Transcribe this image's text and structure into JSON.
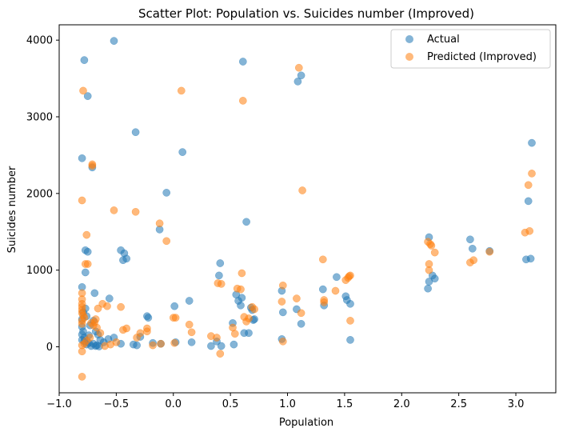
{
  "chart_data": {
    "type": "scatter",
    "title": "Scatter Plot: Population vs. Suicides number (Improved)",
    "xlabel": "Population",
    "ylabel": "Suicides number",
    "xlim": [
      -1.0,
      3.35
    ],
    "ylim": [
      -600,
      4200
    ],
    "xticks": [
      -1.0,
      -0.5,
      0.0,
      0.5,
      1.0,
      1.5,
      2.0,
      2.5,
      3.0
    ],
    "xtick_labels": [
      "−1.0",
      "−0.5",
      "0.0",
      "0.5",
      "1.0",
      "1.5",
      "2.0",
      "2.5",
      "3.0"
    ],
    "yticks": [
      0,
      1000,
      2000,
      3000,
      4000
    ],
    "ytick_labels": [
      "0",
      "1000",
      "2000",
      "3000",
      "4000"
    ],
    "grid": false,
    "legend_position": "top-right",
    "series": [
      {
        "name": "Actual",
        "color": "#1f77b4",
        "points": [
          [
            -0.52,
            3990
          ],
          [
            -0.78,
            3740
          ],
          [
            -0.75,
            3270
          ],
          [
            -0.33,
            2800
          ],
          [
            0.08,
            2540
          ],
          [
            -0.8,
            2460
          ],
          [
            -0.71,
            2340
          ],
          [
            -0.06,
            2010
          ],
          [
            0.61,
            3720
          ],
          [
            1.09,
            3460
          ],
          [
            1.12,
            3540
          ],
          [
            0.64,
            1630
          ],
          [
            -0.12,
            1530
          ],
          [
            -0.46,
            1260
          ],
          [
            -0.43,
            1220
          ],
          [
            -0.77,
            1260
          ],
          [
            -0.75,
            1240
          ],
          [
            -0.44,
            1130
          ],
          [
            -0.41,
            1150
          ],
          [
            -0.77,
            970
          ],
          [
            -0.8,
            780
          ],
          [
            -0.69,
            700
          ],
          [
            -0.56,
            630
          ],
          [
            0.41,
            1090
          ],
          [
            0.4,
            930
          ],
          [
            0.55,
            680
          ],
          [
            0.57,
            600
          ],
          [
            0.59,
            540
          ],
          [
            0.6,
            640
          ],
          [
            0.68,
            510
          ],
          [
            0.69,
            480
          ],
          [
            0.14,
            600
          ],
          [
            0.01,
            530
          ],
          [
            -0.23,
            400
          ],
          [
            -0.22,
            380
          ],
          [
            0.95,
            730
          ],
          [
            0.96,
            450
          ],
          [
            1.08,
            490
          ],
          [
            1.12,
            300
          ],
          [
            1.31,
            750
          ],
          [
            1.32,
            540
          ],
          [
            1.43,
            910
          ],
          [
            1.51,
            660
          ],
          [
            1.52,
            610
          ],
          [
            1.55,
            560
          ],
          [
            1.55,
            90
          ],
          [
            0.95,
            100
          ],
          [
            0.7,
            350
          ],
          [
            0.71,
            360
          ],
          [
            0.52,
            310
          ],
          [
            0.62,
            180
          ],
          [
            0.66,
            180
          ],
          [
            0.38,
            70
          ],
          [
            0.42,
            10
          ],
          [
            0.53,
            30
          ],
          [
            0.33,
            10
          ],
          [
            0.16,
            60
          ],
          [
            0.02,
            60
          ],
          [
            -0.11,
            40
          ],
          [
            -0.18,
            50
          ],
          [
            -0.29,
            130
          ],
          [
            -0.32,
            20
          ],
          [
            -0.35,
            30
          ],
          [
            -0.46,
            40
          ],
          [
            -0.52,
            120
          ],
          [
            -0.57,
            100
          ],
          [
            -0.61,
            60
          ],
          [
            -0.64,
            90
          ],
          [
            -0.66,
            160
          ],
          [
            -0.68,
            200
          ],
          [
            -0.7,
            40
          ],
          [
            -0.72,
            10
          ],
          [
            -0.74,
            50
          ],
          [
            -0.76,
            30
          ],
          [
            -0.78,
            120
          ],
          [
            -0.79,
            200
          ],
          [
            -0.8,
            260
          ],
          [
            -0.8,
            360
          ],
          [
            -0.79,
            450
          ],
          [
            -0.77,
            500
          ],
          [
            -0.73,
            280
          ],
          [
            -0.7,
            340
          ],
          [
            -0.68,
            10
          ],
          [
            -0.67,
            20
          ],
          [
            -0.65,
            5
          ],
          [
            -0.8,
            90
          ],
          [
            -0.8,
            160
          ],
          [
            -0.78,
            70
          ],
          [
            -0.76,
            400
          ],
          [
            -0.74,
            150
          ],
          [
            2.24,
            1430
          ],
          [
            2.23,
            760
          ],
          [
            2.24,
            850
          ],
          [
            2.27,
            930
          ],
          [
            2.29,
            890
          ],
          [
            2.6,
            1400
          ],
          [
            2.62,
            1280
          ],
          [
            2.77,
            1250
          ],
          [
            3.09,
            1140
          ],
          [
            3.11,
            1900
          ],
          [
            3.13,
            1150
          ],
          [
            3.14,
            2660
          ]
        ]
      },
      {
        "name": "Predicted (Improved)",
        "color": "#ff7f0e",
        "points": [
          [
            -0.79,
            3340
          ],
          [
            -0.71,
            2380
          ],
          [
            -0.71,
            2360
          ],
          [
            -0.8,
            1910
          ],
          [
            -0.52,
            1780
          ],
          [
            -0.33,
            1760
          ],
          [
            -0.12,
            1610
          ],
          [
            -0.06,
            1380
          ],
          [
            0.07,
            3340
          ],
          [
            0.61,
            3210
          ],
          [
            1.1,
            3640
          ],
          [
            1.13,
            2040
          ],
          [
            -0.76,
            1460
          ],
          [
            -0.77,
            1080
          ],
          [
            -0.75,
            1080
          ],
          [
            -0.8,
            700
          ],
          [
            -0.8,
            620
          ],
          [
            -0.8,
            560
          ],
          [
            -0.8,
            520
          ],
          [
            -0.8,
            480
          ],
          [
            -0.8,
            440
          ],
          [
            -0.79,
            410
          ],
          [
            -0.78,
            380
          ],
          [
            -0.8,
            340
          ],
          [
            -0.8,
            300
          ],
          [
            -0.72,
            310
          ],
          [
            -0.7,
            280
          ],
          [
            -0.68,
            360
          ],
          [
            -0.66,
            500
          ],
          [
            -0.62,
            560
          ],
          [
            -0.58,
            530
          ],
          [
            -0.46,
            520
          ],
          [
            -0.44,
            220
          ],
          [
            -0.41,
            240
          ],
          [
            -0.5,
            60
          ],
          [
            -0.55,
            30
          ],
          [
            -0.6,
            10
          ],
          [
            -0.64,
            180
          ],
          [
            -0.67,
            250
          ],
          [
            -0.69,
            320
          ],
          [
            -0.73,
            120
          ],
          [
            -0.76,
            80
          ],
          [
            -0.78,
            40
          ],
          [
            -0.8,
            20
          ],
          [
            -0.8,
            -60
          ],
          [
            -0.8,
            -390
          ],
          [
            -0.23,
            240
          ],
          [
            -0.23,
            200
          ],
          [
            -0.29,
            180
          ],
          [
            -0.32,
            120
          ],
          [
            -0.18,
            20
          ],
          [
            -0.11,
            40
          ],
          [
            0.0,
            380
          ],
          [
            0.02,
            380
          ],
          [
            0.01,
            50
          ],
          [
            0.14,
            290
          ],
          [
            0.16,
            190
          ],
          [
            0.33,
            140
          ],
          [
            0.38,
            120
          ],
          [
            0.39,
            830
          ],
          [
            0.42,
            820
          ],
          [
            0.41,
            -90
          ],
          [
            0.52,
            250
          ],
          [
            0.54,
            170
          ],
          [
            0.56,
            760
          ],
          [
            0.59,
            750
          ],
          [
            0.6,
            960
          ],
          [
            0.62,
            390
          ],
          [
            0.64,
            330
          ],
          [
            0.66,
            370
          ],
          [
            0.69,
            520
          ],
          [
            0.71,
            490
          ],
          [
            0.95,
            590
          ],
          [
            0.96,
            800
          ],
          [
            0.96,
            70
          ],
          [
            1.08,
            630
          ],
          [
            1.12,
            440
          ],
          [
            1.31,
            1140
          ],
          [
            1.32,
            610
          ],
          [
            1.32,
            580
          ],
          [
            1.42,
            730
          ],
          [
            1.51,
            870
          ],
          [
            1.53,
            900
          ],
          [
            1.54,
            920
          ],
          [
            1.55,
            930
          ],
          [
            1.55,
            340
          ],
          [
            2.23,
            1370
          ],
          [
            2.24,
            1080
          ],
          [
            2.25,
            1340
          ],
          [
            2.26,
            1320
          ],
          [
            2.29,
            1230
          ],
          [
            2.24,
            1000
          ],
          [
            2.6,
            1100
          ],
          [
            2.63,
            1130
          ],
          [
            2.77,
            1240
          ],
          [
            3.08,
            1490
          ],
          [
            3.12,
            1510
          ],
          [
            3.11,
            2110
          ],
          [
            3.14,
            2260
          ]
        ]
      }
    ]
  }
}
